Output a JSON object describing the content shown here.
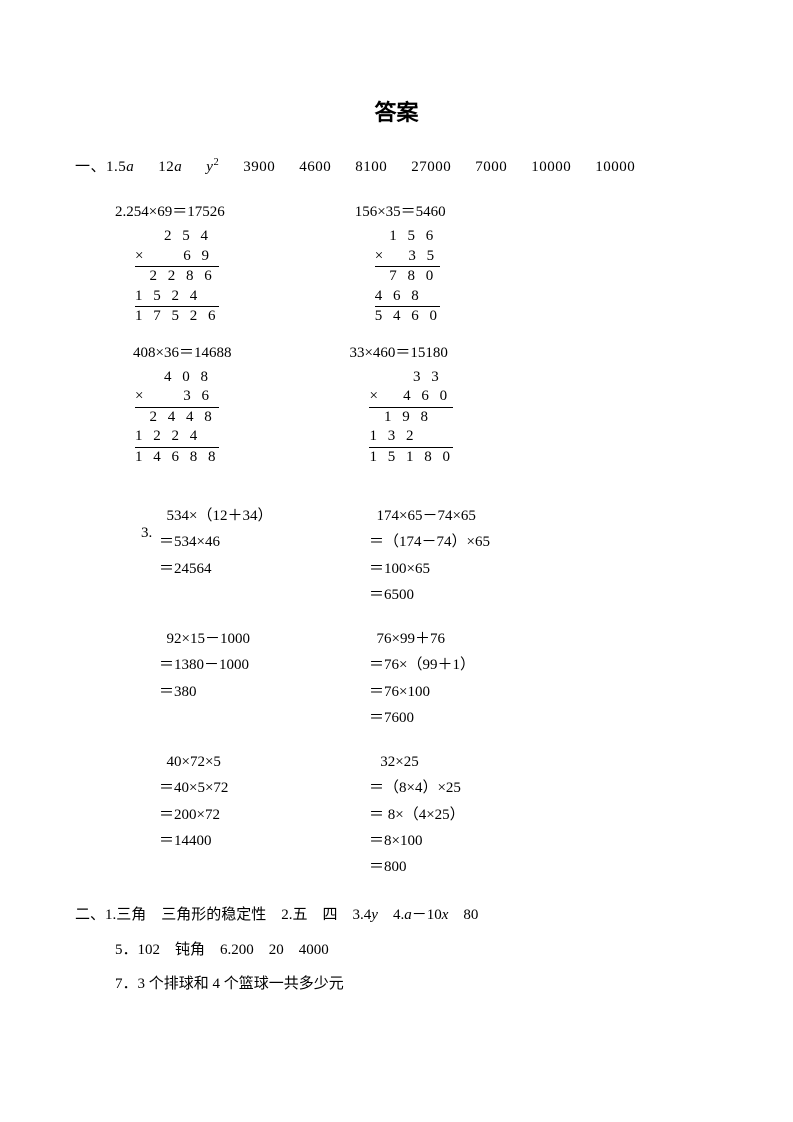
{
  "title": "答案",
  "section1": {
    "label": "一、",
    "line1_items": [
      "1.5<i>a</i>",
      "12<i>a</i>",
      "<i>y</i><span class='sup'>2</span>",
      "3900",
      "4600",
      "8100",
      "27000",
      "7000",
      "10000",
      "10000"
    ],
    "multiplications": [
      {
        "eq": "2.254×69＝17526",
        "rows": [
          "    2 5 4",
          "×     6 9",
          "  2 2 8 6",
          "1 5 2 4  ",
          "1 7 5 2 6"
        ],
        "ulines": [
          1,
          3
        ]
      },
      {
        "eq": "156×35＝5460",
        "rows": [
          "  1 5 6",
          "×   3 5",
          "  7 8 0",
          "4 6 8  ",
          "5 4 6 0"
        ],
        "ulines": [
          1,
          3
        ]
      },
      {
        "eq": "408×36＝14688",
        "rows": [
          "    4 0 8",
          "×     3 6",
          "  2 4 4 8",
          "1 2 2 4  ",
          "1 4 6 8 8"
        ],
        "ulines": [
          1,
          3
        ]
      },
      {
        "eq": "33×460＝15180",
        "rows": [
          "      3 3",
          "×   4 6 0",
          "  1 9 8  ",
          "1 3 2    ",
          "1 5 1 8 0"
        ],
        "ulines": [
          1,
          3
        ]
      }
    ],
    "step_prefix": "3.",
    "steps": [
      {
        "left": [
          "  534×（12＋34）",
          "＝534×46",
          "＝24564"
        ],
        "right": [
          "  174×65－74×65",
          "＝（174－74）×65",
          "＝100×65",
          "＝6500"
        ]
      },
      {
        "left": [
          "  92×15－1000",
          "＝1380－1000",
          "＝380"
        ],
        "right": [
          "  76×99＋76",
          "＝76×（99＋1）",
          "＝76×100",
          "＝7600"
        ]
      },
      {
        "left": [
          "  40×72×5",
          "＝40×5×72",
          "＝200×72",
          "＝14400"
        ],
        "right": [
          "   32×25",
          "＝（8×4）×25",
          "＝ 8×（4×25）",
          "＝8×100",
          "＝800"
        ]
      }
    ]
  },
  "section2": {
    "label": "二、",
    "lines": [
      "1.三角　三角形的稳定性　2.五　四　3.4<i>y</i>　4.<i>a</i>－10<i>x</i>　80",
      "5．102　钝角　6.200　20　4000",
      "7．3 个排球和 4 个篮球一共多少元"
    ]
  },
  "style": {
    "background_color": "#ffffff",
    "text_color": "#000000",
    "title_fontsize": 22,
    "body_fontsize": 15
  }
}
